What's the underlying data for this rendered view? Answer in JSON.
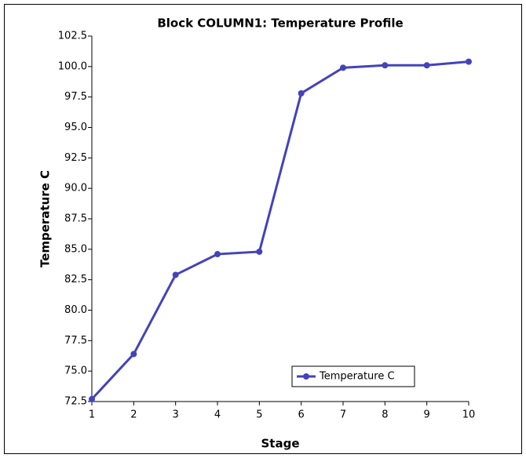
{
  "chart_data": {
    "type": "line",
    "title": "Block COLUMN1: Temperature Profile",
    "x_label": "Stage",
    "y_label": "Temperature C",
    "x": [
      1,
      2,
      3,
      4,
      5,
      6,
      7,
      8,
      9,
      10
    ],
    "series": [
      {
        "name": "Temperature C",
        "color": "#4343bb",
        "values": [
          72.7,
          76.4,
          82.9,
          84.6,
          84.8,
          97.8,
          99.9,
          100.1,
          100.1,
          100.4
        ]
      }
    ],
    "xlim": [
      1,
      10
    ],
    "xticks": [
      1,
      2,
      3,
      4,
      5,
      6,
      7,
      8,
      9,
      10
    ],
    "ylim": [
      72.5,
      102.5
    ],
    "yticks": [
      72.5,
      {
        "value": 75,
        "label": "75.0"
      },
      77.5,
      {
        "value": 80,
        "label": "80.0"
      },
      82.5,
      {
        "value": 85,
        "label": "85.0"
      },
      87.5,
      {
        "value": 90,
        "label": "90.0"
      },
      92.5,
      {
        "value": 95,
        "label": "95.0"
      },
      97.5,
      {
        "value": 100,
        "label": "100.0"
      },
      102.5
    ],
    "grid": false,
    "legend_position": "lower right"
  }
}
